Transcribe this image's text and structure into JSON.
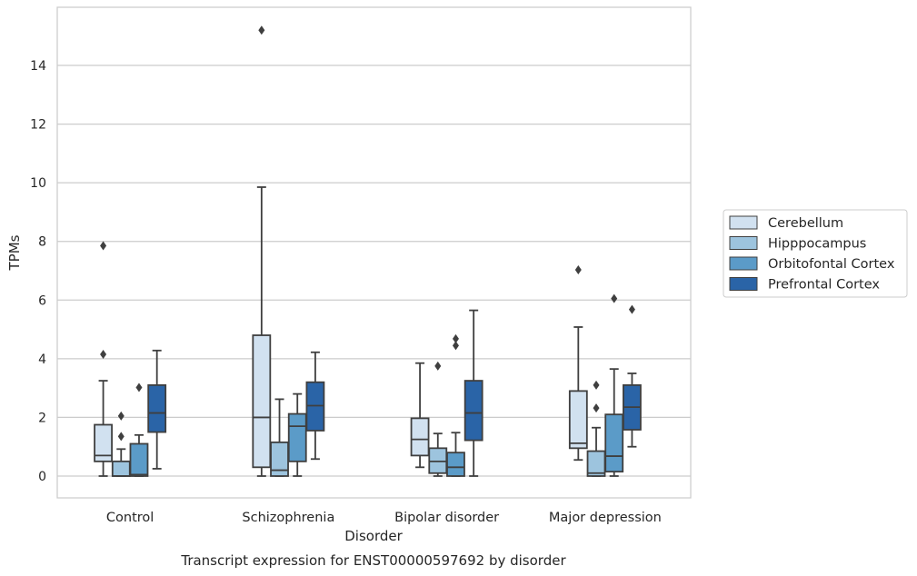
{
  "chart_data": {
    "type": "boxplot",
    "title": "",
    "caption": "Transcript expression for ENST00000597692 by disorder",
    "xlabel": "Disorder",
    "ylabel": "TPMs",
    "ylim": [
      -0.75,
      15.75
    ],
    "yticks": [
      0,
      2,
      4,
      6,
      8,
      10,
      12,
      14
    ],
    "grid": "horizontal",
    "legend_position": "right",
    "categories": [
      "Control",
      "Schizophrenia",
      "Bipolar disorder",
      "Major depression"
    ],
    "series": [
      {
        "name": "Cerebellum",
        "color": "#d1e1f0",
        "boxes": [
          {
            "whislo": 0.0,
            "q1": 0.5,
            "med": 0.7,
            "q3": 1.75,
            "whishi": 3.25,
            "fliers": [
              4.15,
              7.85
            ]
          },
          {
            "whislo": 0.0,
            "q1": 0.3,
            "med": 2.0,
            "q3": 4.8,
            "whishi": 9.85,
            "fliers": [
              15.2
            ]
          },
          {
            "whislo": 0.3,
            "q1": 0.7,
            "med": 1.25,
            "q3": 1.97,
            "whishi": 3.85,
            "fliers": []
          },
          {
            "whislo": 0.55,
            "q1": 0.95,
            "med": 1.12,
            "q3": 2.9,
            "whishi": 5.08,
            "fliers": [
              7.03
            ]
          }
        ]
      },
      {
        "name": "Hipppocampus",
        "color": "#9dc4de",
        "boxes": [
          {
            "whislo": 0.0,
            "q1": 0.0,
            "med": 0.0,
            "q3": 0.5,
            "whishi": 0.92,
            "fliers": [
              1.35,
              2.05
            ]
          },
          {
            "whislo": 0.0,
            "q1": 0.0,
            "med": 0.2,
            "q3": 1.15,
            "whishi": 2.62,
            "fliers": []
          },
          {
            "whislo": 0.0,
            "q1": 0.1,
            "med": 0.5,
            "q3": 0.95,
            "whishi": 1.45,
            "fliers": [
              3.75
            ]
          },
          {
            "whislo": 0.0,
            "q1": 0.0,
            "med": 0.1,
            "q3": 0.85,
            "whishi": 1.65,
            "fliers": [
              2.32,
              3.1
            ]
          }
        ]
      },
      {
        "name": "Orbitofontal Cortex",
        "color": "#5b9bc8",
        "boxes": [
          {
            "whislo": 0.0,
            "q1": 0.0,
            "med": 0.05,
            "q3": 1.1,
            "whishi": 1.4,
            "fliers": [
              3.02
            ]
          },
          {
            "whislo": 0.0,
            "q1": 0.5,
            "med": 1.7,
            "q3": 2.12,
            "whishi": 2.8,
            "fliers": []
          },
          {
            "whislo": 0.0,
            "q1": 0.0,
            "med": 0.3,
            "q3": 0.8,
            "whishi": 1.48,
            "fliers": [
              4.45,
              4.68
            ]
          },
          {
            "whislo": 0.0,
            "q1": 0.15,
            "med": 0.68,
            "q3": 2.1,
            "whishi": 3.65,
            "fliers": [
              6.05
            ]
          }
        ]
      },
      {
        "name": "Prefrontal Cortex",
        "color": "#2a64a7",
        "boxes": [
          {
            "whislo": 0.25,
            "q1": 1.5,
            "med": 2.15,
            "q3": 3.1,
            "whishi": 4.28,
            "fliers": []
          },
          {
            "whislo": 0.58,
            "q1": 1.55,
            "med": 2.4,
            "q3": 3.2,
            "whishi": 4.22,
            "fliers": []
          },
          {
            "whislo": 0.0,
            "q1": 1.22,
            "med": 2.15,
            "q3": 3.25,
            "whishi": 5.65,
            "fliers": []
          },
          {
            "whislo": 1.0,
            "q1": 1.58,
            "med": 2.35,
            "q3": 3.1,
            "whishi": 3.5,
            "fliers": [
              5.68
            ]
          }
        ]
      }
    ]
  }
}
